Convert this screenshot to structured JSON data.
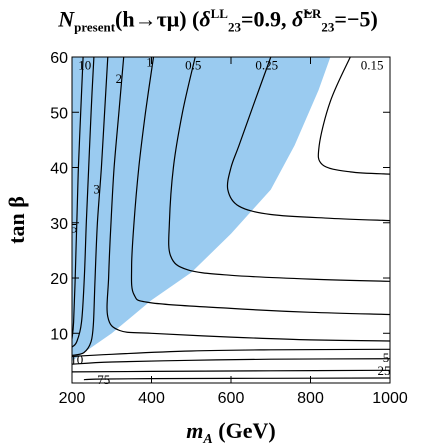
{
  "chart_data": {
    "type": "contour",
    "title": {
      "prefix": "N",
      "prefix_sub": "present",
      "process": "(h→τμ) (",
      "delta1": "δ",
      "delta1_sup": "LL",
      "delta1_sub": "23",
      "value1": "=0.9, ",
      "delta2": "δ̃",
      "delta2_sup": "LR",
      "delta2_sub": "23",
      "value2": "=−5)"
    },
    "xlabel": {
      "var": "m",
      "sub": "A",
      "unit": " (GeV)"
    },
    "ylabel": {
      "text": "tan β"
    },
    "xlim": [
      200,
      1000
    ],
    "ylim": [
      1,
      60
    ],
    "xticks": [
      200,
      400,
      600,
      800,
      1000
    ],
    "yticks": [
      10,
      20,
      30,
      40,
      50,
      60
    ],
    "excluded_region": {
      "color": "#9acbf0",
      "boundary": [
        {
          "x": 200,
          "y": 5
        },
        {
          "x": 300,
          "y": 10
        },
        {
          "x": 400,
          "y": 16
        },
        {
          "x": 500,
          "y": 21
        },
        {
          "x": 600,
          "y": 28
        },
        {
          "x": 700,
          "y": 36
        },
        {
          "x": 760,
          "y": 44
        },
        {
          "x": 820,
          "y": 54
        },
        {
          "x": 850,
          "y": 60
        }
      ]
    },
    "contours": [
      {
        "label": "10",
        "label_at": {
          "x": 232,
          "y": 58.5
        },
        "points": [
          {
            "x": 228,
            "y": 60
          },
          {
            "x": 222,
            "y": 50
          },
          {
            "x": 216,
            "y": 40
          },
          {
            "x": 212,
            "y": 30
          },
          {
            "x": 208,
            "y": 20
          },
          {
            "x": 204,
            "y": 12
          },
          {
            "x": 200,
            "y": 9
          }
        ]
      },
      {
        "label": "5",
        "label_at": {
          "x": 205,
          "y": 29
        },
        "points": [
          {
            "x": 255,
            "y": 60
          },
          {
            "x": 248,
            "y": 50
          },
          {
            "x": 242,
            "y": 40
          },
          {
            "x": 236,
            "y": 30
          },
          {
            "x": 231,
            "y": 20
          },
          {
            "x": 224,
            "y": 12
          },
          {
            "x": 212,
            "y": 8.5
          },
          {
            "x": 200,
            "y": 7.5
          }
        ]
      },
      {
        "label": "3",
        "label_at": {
          "x": 262,
          "y": 36
        },
        "points": [
          {
            "x": 290,
            "y": 60
          },
          {
            "x": 282,
            "y": 50
          },
          {
            "x": 274,
            "y": 40
          },
          {
            "x": 264,
            "y": 30
          },
          {
            "x": 258,
            "y": 20
          },
          {
            "x": 254,
            "y": 12
          },
          {
            "x": 248,
            "y": 8.5
          },
          {
            "x": 230,
            "y": 6.5
          },
          {
            "x": 200,
            "y": 6
          }
        ]
      },
      {
        "label": "2",
        "label_at": {
          "x": 318,
          "y": 56
        },
        "points": [
          {
            "x": 330,
            "y": 60
          },
          {
            "x": 318,
            "y": 50
          },
          {
            "x": 306,
            "y": 40
          },
          {
            "x": 298,
            "y": 30
          },
          {
            "x": 292,
            "y": 20
          },
          {
            "x": 290,
            "y": 13
          },
          {
            "x": 320,
            "y": 10.5
          },
          {
            "x": 400,
            "y": 10
          },
          {
            "x": 600,
            "y": 9.3
          },
          {
            "x": 800,
            "y": 8.8
          },
          {
            "x": 1000,
            "y": 8.6
          }
        ]
      },
      {
        "label": "1",
        "label_at": {
          "x": 395,
          "y": 59
        },
        "points": [
          {
            "x": 405,
            "y": 60
          },
          {
            "x": 385,
            "y": 50
          },
          {
            "x": 368,
            "y": 40
          },
          {
            "x": 356,
            "y": 30
          },
          {
            "x": 350,
            "y": 22
          },
          {
            "x": 356,
            "y": 17
          },
          {
            "x": 400,
            "y": 15.5
          },
          {
            "x": 600,
            "y": 14.5
          },
          {
            "x": 800,
            "y": 13.8
          },
          {
            "x": 1000,
            "y": 13.4
          }
        ]
      },
      {
        "label": "0.5",
        "label_at": {
          "x": 505,
          "y": 58.5
        },
        "points": [
          {
            "x": 510,
            "y": 60
          },
          {
            "x": 478,
            "y": 50
          },
          {
            "x": 455,
            "y": 40
          },
          {
            "x": 445,
            "y": 30
          },
          {
            "x": 448,
            "y": 24
          },
          {
            "x": 490,
            "y": 21.5
          },
          {
            "x": 600,
            "y": 20.5
          },
          {
            "x": 800,
            "y": 19.8
          },
          {
            "x": 1000,
            "y": 19.4
          }
        ]
      },
      {
        "label": "0.25",
        "label_at": {
          "x": 690,
          "y": 58.5
        },
        "points": [
          {
            "x": 700,
            "y": 60
          },
          {
            "x": 660,
            "y": 52
          },
          {
            "x": 620,
            "y": 44
          },
          {
            "x": 600,
            "y": 40
          },
          {
            "x": 592,
            "y": 36
          },
          {
            "x": 620,
            "y": 33
          },
          {
            "x": 700,
            "y": 31.5
          },
          {
            "x": 850,
            "y": 30.8
          },
          {
            "x": 1000,
            "y": 30.4
          }
        ]
      },
      {
        "label": "0.15",
        "label_at": {
          "x": 955,
          "y": 58.5
        },
        "points": [
          {
            "x": 900,
            "y": 60
          },
          {
            "x": 850,
            "y": 52
          },
          {
            "x": 822,
            "y": 44
          },
          {
            "x": 830,
            "y": 40.5
          },
          {
            "x": 900,
            "y": 39.2
          },
          {
            "x": 1000,
            "y": 38.8
          }
        ]
      },
      {
        "label": "10",
        "label_at": {
          "x": 212,
          "y": 5.2
        },
        "points": [
          {
            "x": 200,
            "y": 5.8
          },
          {
            "x": 300,
            "y": 6.2
          },
          {
            "x": 500,
            "y": 6.8
          },
          {
            "x": 700,
            "y": 7.0
          },
          {
            "x": 1000,
            "y": 7.1
          }
        ]
      },
      {
        "label": "5",
        "label_at": {
          "x": 990,
          "y": 5.5
        },
        "points": [
          {
            "x": 200,
            "y": 4.4
          },
          {
            "x": 300,
            "y": 4.8
          },
          {
            "x": 500,
            "y": 5.1
          },
          {
            "x": 700,
            "y": 5.3
          },
          {
            "x": 1000,
            "y": 5.4
          }
        ]
      },
      {
        "label": "25",
        "label_at": {
          "x": 985,
          "y": 3.2
        },
        "points": [
          {
            "x": 200,
            "y": 3.0
          },
          {
            "x": 400,
            "y": 3.1
          },
          {
            "x": 700,
            "y": 3.2
          },
          {
            "x": 1000,
            "y": 3.3
          }
        ]
      },
      {
        "label": "75",
        "label_at": {
          "x": 280,
          "y": 1.5
        },
        "points": [
          {
            "x": 230,
            "y": 1.6
          },
          {
            "x": 260,
            "y": 1.7
          },
          {
            "x": 400,
            "y": 1.8
          },
          {
            "x": 700,
            "y": 1.85
          },
          {
            "x": 1000,
            "y": 1.9
          }
        ]
      }
    ]
  }
}
